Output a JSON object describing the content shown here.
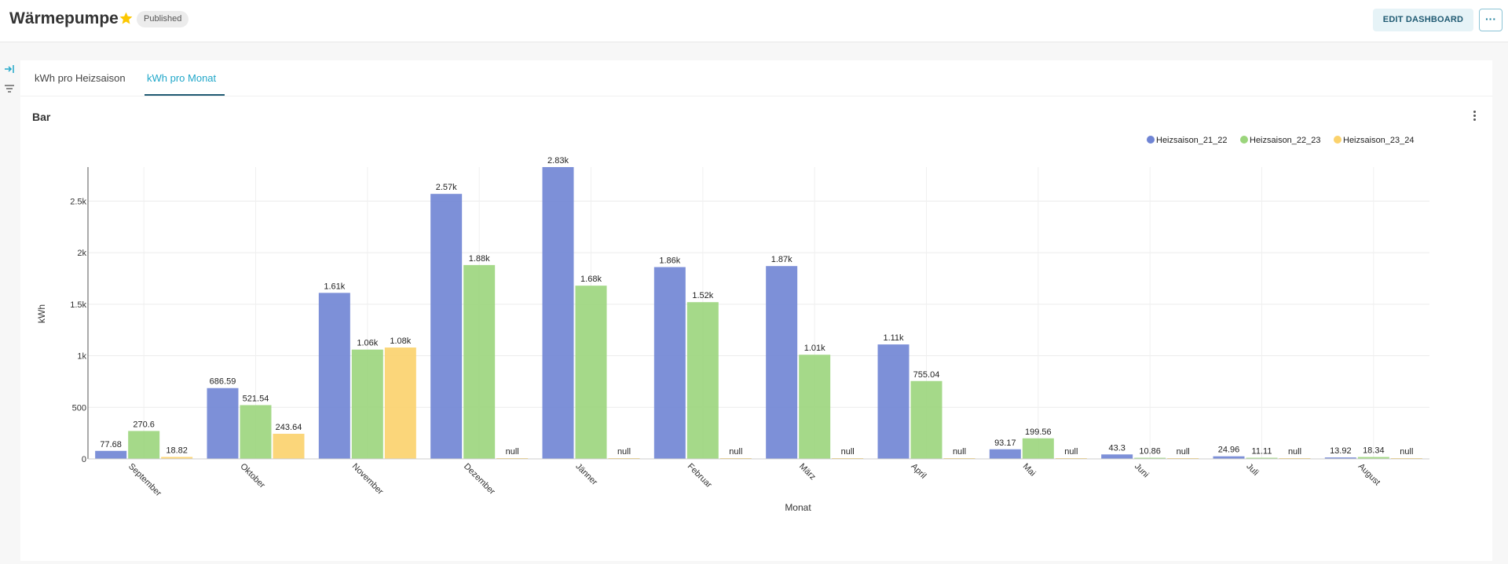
{
  "header": {
    "title": "Wärmepumpe",
    "status_badge": "Published",
    "edit_button": "EDIT DASHBOARD",
    "more_button": "···"
  },
  "colors": {
    "accent": "#20a7c9",
    "star": "#fcc700",
    "series": [
      "#6f84d4",
      "#9bd57c",
      "#fbd26c"
    ]
  },
  "tabs": [
    {
      "label": "kWh pro Heizsaison",
      "active": false
    },
    {
      "label": "kWh pro Monat",
      "active": true
    }
  ],
  "chart": {
    "title": "Bar"
  },
  "chart_data": {
    "type": "bar",
    "xlabel": "Monat",
    "ylabel": "kWh",
    "ylim": [
      0,
      2830
    ],
    "yticks": [
      "0",
      "500",
      "1k",
      "1.5k",
      "2k",
      "2.5k"
    ],
    "ytick_values": [
      0,
      500,
      1000,
      1500,
      2000,
      2500
    ],
    "grid": true,
    "legend_position": "top-right",
    "categories": [
      "September",
      "Oktober",
      "November",
      "Dezember",
      "Jänner",
      "Februar",
      "März",
      "April",
      "Mai",
      "Juni",
      "Juli",
      "August"
    ],
    "series": [
      {
        "name": "Heizsaison_21_22",
        "values": [
          77.68,
          686.59,
          1610,
          2570,
          2830,
          1860,
          1870,
          1110,
          93.17,
          43.3,
          24.96,
          13.92
        ],
        "labels": [
          "77.68",
          "686.59",
          "1.61k",
          "2.57k",
          "2.83k",
          "1.86k",
          "1.87k",
          "1.11k",
          "93.17",
          "43.3",
          "24.96",
          "13.92"
        ]
      },
      {
        "name": "Heizsaison_22_23",
        "values": [
          270.6,
          521.54,
          1060,
          1880,
          1680,
          1520,
          1010,
          755.04,
          199.56,
          10.86,
          11.11,
          18.34
        ],
        "labels": [
          "270.6",
          "521.54",
          "1.06k",
          "1.88k",
          "1.68k",
          "1.52k",
          "1.01k",
          "755.04",
          "199.56",
          "10.86",
          "11.11",
          "18.34"
        ]
      },
      {
        "name": "Heizsaison_23_24",
        "values": [
          18.82,
          243.64,
          1080,
          null,
          null,
          null,
          null,
          null,
          null,
          null,
          null,
          null
        ],
        "labels": [
          "18.82",
          "243.64",
          "1.08k",
          "null",
          "null",
          "null",
          "null",
          "null",
          "null",
          "null",
          "null",
          "null"
        ]
      }
    ]
  }
}
